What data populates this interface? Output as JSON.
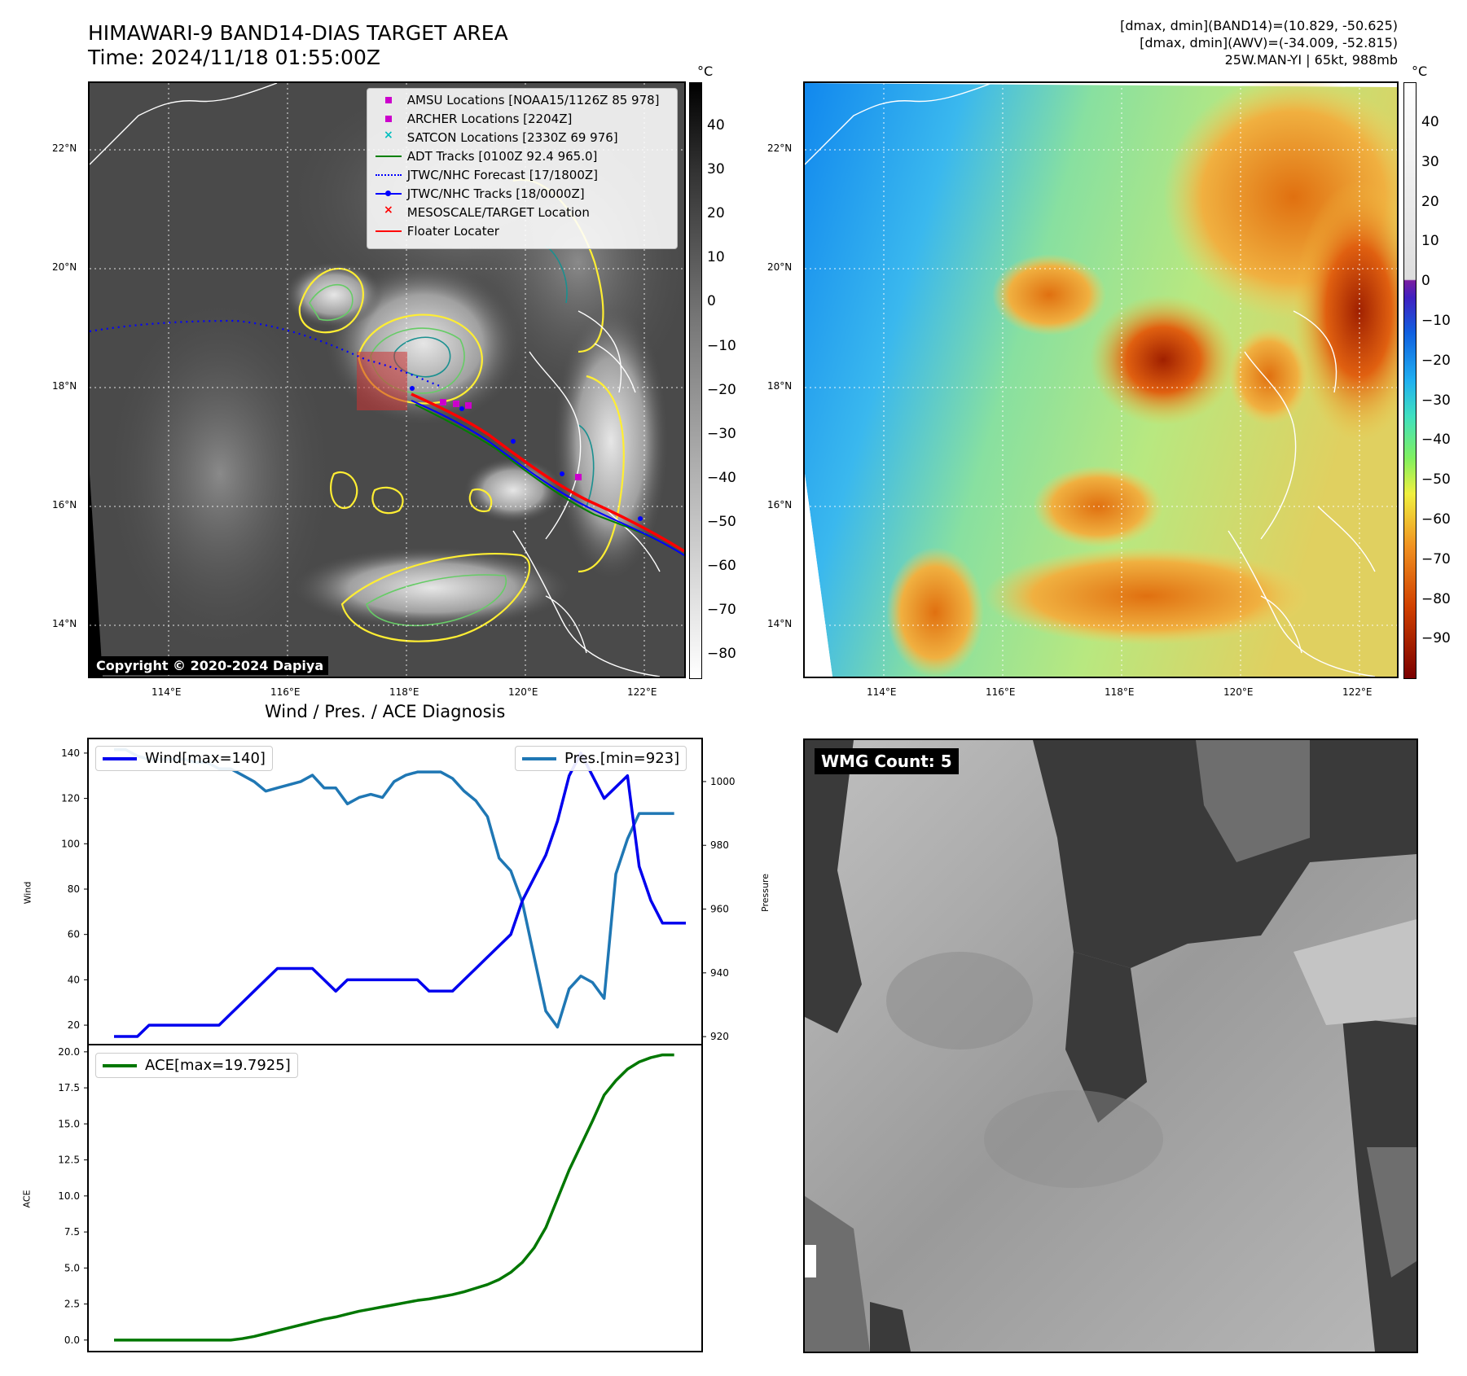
{
  "header": {
    "title_line1": "HIMAWARI-9 BAND14-DIAS TARGET AREA",
    "title_line2": "Time: 2024/11/18 01:55:00Z",
    "info_line1": "[dmax, dmin](BAND14)=(10.829, -50.625)",
    "info_line2": "[dmax, dmin](AWV)=(-34.009, -52.815)",
    "info_line3": "25W.MAN-YI | 65kt, 988mb"
  },
  "map": {
    "lat_labels": [
      "22°N",
      "20°N",
      "18°N",
      "16°N",
      "14°N"
    ],
    "lon_labels": [
      "114°E",
      "116°E",
      "118°E",
      "120°E",
      "122°E"
    ],
    "copyright": "Copyright © 2020-2024 Dapiya",
    "legend": [
      {
        "label": "AMSU Locations [NOAA15/1126Z 85 978]",
        "symbol": "square",
        "color": "#cc00cc"
      },
      {
        "label": "ARCHER Locations [2204Z]",
        "symbol": "square",
        "color": "#cc00cc"
      },
      {
        "label": "SATCON Locations [2330Z 69 976]",
        "symbol": "x",
        "color": "#00bfbf"
      },
      {
        "label": "ADT Tracks [0100Z 92.4 965.0]",
        "symbol": "line",
        "color": "#008000"
      },
      {
        "label": "JTWC/NHC Forecast [17/1800Z]",
        "symbol": "dotted",
        "color": "#0000ff"
      },
      {
        "label": "JTWC/NHC Tracks [18/0000Z]",
        "symbol": "linedot",
        "color": "#0000ff"
      },
      {
        "label": "MESOSCALE/TARGET Location",
        "symbol": "x",
        "color": "#ff0000"
      },
      {
        "label": "Floater Locater",
        "symbol": "line",
        "color": "#ff0000"
      }
    ]
  },
  "colorbar_left": {
    "unit": "°C",
    "ticks": [
      "40",
      "30",
      "20",
      "10",
      "0",
      "−10",
      "−20",
      "−30",
      "−40",
      "−50",
      "−60",
      "−70",
      "−80"
    ]
  },
  "colorbar_right": {
    "unit": "°C",
    "ticks": [
      "40",
      "30",
      "20",
      "10",
      "0",
      "−10",
      "−20",
      "−30",
      "−40",
      "−50",
      "−60",
      "−70",
      "−80",
      "−90"
    ]
  },
  "diagnosis": {
    "title": "Wind / Pres. / ACE Diagnosis",
    "wind_legend": "Wind[max=140]",
    "pres_legend": "Pres.[min=923]",
    "ace_legend": "ACE[max=19.7925]",
    "wind_ylabel": "Wind",
    "pres_ylabel": "Pressure",
    "ace_ylabel": "ACE"
  },
  "wmg": {
    "label": "WMG Count: 5"
  },
  "colors": {
    "wind": "#0000ee",
    "pressure": "#1f77b4",
    "ace": "#007700"
  },
  "chart_data": [
    {
      "type": "line",
      "title": "Wind / Pres. / ACE Diagnosis",
      "series": [
        {
          "name": "Wind[max=140]",
          "axis": "left",
          "x": [
            0,
            1,
            2,
            3,
            4,
            5,
            6,
            7,
            8,
            9,
            10,
            11,
            12,
            13,
            14,
            15,
            16,
            17,
            18,
            19,
            20,
            21,
            22,
            23,
            24,
            25,
            26,
            27,
            28,
            29,
            30,
            31,
            32,
            33,
            34,
            35,
            36,
            37,
            38,
            39,
            40,
            41,
            42,
            43,
            44,
            45,
            46,
            47,
            48,
            49
          ],
          "values": [
            15,
            15,
            15,
            20,
            20,
            20,
            20,
            20,
            20,
            20,
            25,
            30,
            35,
            40,
            45,
            45,
            45,
            45,
            40,
            35,
            40,
            40,
            40,
            40,
            40,
            40,
            40,
            35,
            35,
            35,
            40,
            45,
            50,
            55,
            60,
            75,
            85,
            95,
            110,
            130,
            140,
            130,
            120,
            125,
            130,
            90,
            75,
            65,
            65,
            65
          ]
        },
        {
          "name": "Pres.[min=923]",
          "axis": "right",
          "x": [
            0,
            1,
            2,
            3,
            4,
            5,
            6,
            7,
            8,
            9,
            10,
            11,
            12,
            13,
            14,
            15,
            16,
            17,
            18,
            19,
            20,
            21,
            22,
            23,
            24,
            25,
            26,
            27,
            28,
            29,
            30,
            31,
            32,
            33,
            34,
            35,
            36,
            37,
            38,
            39,
            40,
            41,
            42,
            43,
            44,
            45,
            46,
            47,
            48
          ],
          "values": [
            1010,
            1010,
            1008,
            1007,
            1007,
            1007,
            1007,
            1006,
            1006,
            1004,
            1004,
            1002,
            1000,
            997,
            998,
            999,
            1000,
            1002,
            998,
            998,
            993,
            995,
            996,
            995,
            1000,
            1002,
            1003,
            1003,
            1003,
            1001,
            997,
            994,
            989,
            976,
            972,
            962,
            945,
            928,
            923,
            935,
            939,
            937,
            932,
            971,
            982,
            990,
            990,
            990,
            990
          ]
        },
        {
          "name": "ACE[max=19.7925]",
          "axis": "ace",
          "x": [
            0,
            1,
            2,
            3,
            4,
            5,
            6,
            7,
            8,
            9,
            10,
            11,
            12,
            13,
            14,
            15,
            16,
            17,
            18,
            19,
            20,
            21,
            22,
            23,
            24,
            25,
            26,
            27,
            28,
            29,
            30,
            31,
            32,
            33,
            34,
            35,
            36,
            37,
            38,
            39,
            40,
            41,
            42,
            43,
            44,
            45,
            46,
            47,
            48
          ],
          "values": [
            0,
            0,
            0,
            0,
            0,
            0,
            0,
            0,
            0,
            0,
            0,
            0.1,
            0.25,
            0.45,
            0.65,
            0.85,
            1.05,
            1.25,
            1.45,
            1.6,
            1.8,
            2.0,
            2.15,
            2.3,
            2.45,
            2.6,
            2.75,
            2.85,
            3.0,
            3.15,
            3.35,
            3.6,
            3.85,
            4.2,
            4.7,
            5.4,
            6.4,
            7.8,
            9.8,
            11.8,
            13.5,
            15.2,
            17.0,
            18.0,
            18.8,
            19.3,
            19.6,
            19.79,
            19.79
          ]
        }
      ],
      "wind_ylim": [
        15,
        145
      ],
      "wind_ticks": [
        "20",
        "40",
        "60",
        "80",
        "100",
        "120",
        "140"
      ],
      "pres_ylim": [
        918,
        1013
      ],
      "pres_ticks": [
        "920",
        "940",
        "960",
        "980",
        "1000"
      ],
      "ace_ylim": [
        -0.8,
        20.5
      ],
      "ace_ticks": [
        "0.0",
        "2.5",
        "5.0",
        "7.5",
        "10.0",
        "12.5",
        "15.0",
        "17.5",
        "20.0"
      ],
      "grid": false
    }
  ]
}
